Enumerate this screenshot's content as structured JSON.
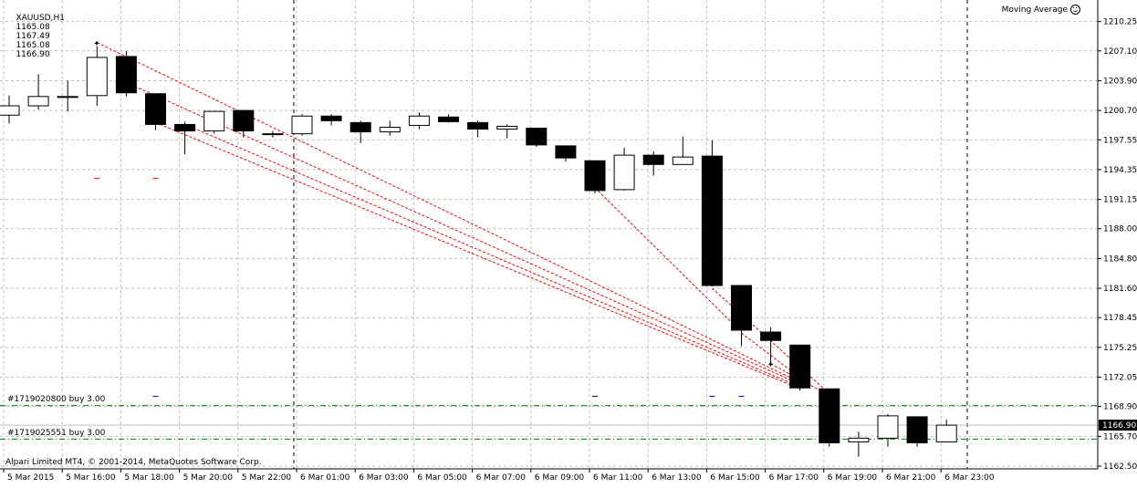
{
  "header": {
    "symbol": "XAUUSD,H1",
    "open": "1165.08",
    "high": "1167.49",
    "low": "1165.08",
    "close": "1166.90"
  },
  "indicator": {
    "label": "Moving Average",
    "icon": "smiley-icon"
  },
  "footer": {
    "copyright": "Alpari Limited MT4, © 2001-2014, MetaQuotes Software Corp."
  },
  "orders": [
    {
      "label": "#1719020800 buy 3.00",
      "price": 1169.0
    },
    {
      "label": "#1719025551 buy 3.00",
      "price": 1165.4
    }
  ],
  "current_price": {
    "label": "1166.90",
    "value": 1166.9
  },
  "colors": {
    "bull_fill": "#ffffff",
    "bear_fill": "#000000",
    "grid": "#c0c0c0",
    "order_line": "#008000",
    "trade_line": "#ff0000",
    "price_line": "#c0c0c0"
  },
  "chart_data": {
    "type": "candlestick",
    "title": "XAUUSD,H1",
    "ylim": [
      1162.5,
      1211.0
    ],
    "grid": true,
    "y_ticks": [
      "1210.25",
      "1207.10",
      "1203.90",
      "1200.70",
      "1197.55",
      "1194.35",
      "1191.15",
      "1188.00",
      "1184.80",
      "1181.60",
      "1178.45",
      "1175.25",
      "1172.05",
      "1168.90",
      "1165.70",
      "1162.50"
    ],
    "x_ticks": [
      "5 Mar 2015",
      "5 Mar 16:00",
      "5 Mar 18:00",
      "5 Mar 20:00",
      "5 Mar 22:00",
      "6 Mar 01:00",
      "6 Mar 03:00",
      "6 Mar 05:00",
      "6 Mar 07:00",
      "6 Mar 09:00",
      "6 Mar 11:00",
      "6 Mar 13:00",
      "6 Mar 15:00",
      "6 Mar 17:00",
      "6 Mar 19:00",
      "6 Mar 21:00",
      "6 Mar 23:00"
    ],
    "candles": [
      {
        "o": 1200.2,
        "h": 1202.3,
        "l": 1199.3,
        "c": 1201.2
      },
      {
        "o": 1201.2,
        "h": 1204.6,
        "l": 1200.8,
        "c": 1202.2
      },
      {
        "o": 1202.2,
        "h": 1203.9,
        "l": 1200.6,
        "c": 1202.2
      },
      {
        "o": 1202.3,
        "h": 1207.6,
        "l": 1201.2,
        "c": 1206.4
      },
      {
        "o": 1206.5,
        "h": 1207.1,
        "l": 1202.2,
        "c": 1202.6
      },
      {
        "o": 1202.5,
        "h": 1202.5,
        "l": 1198.6,
        "c": 1199.2
      },
      {
        "o": 1199.2,
        "h": 1199.5,
        "l": 1196.0,
        "c": 1198.5
      },
      {
        "o": 1198.5,
        "h": 1200.6,
        "l": 1198.2,
        "c": 1200.6
      },
      {
        "o": 1200.7,
        "h": 1200.7,
        "l": 1197.8,
        "c": 1198.5
      },
      {
        "o": 1198.2,
        "h": 1198.5,
        "l": 1197.8,
        "c": 1198.2
      },
      {
        "o": 1198.2,
        "h": 1200.3,
        "l": 1198.0,
        "c": 1200.1
      },
      {
        "o": 1200.1,
        "h": 1200.3,
        "l": 1199.1,
        "c": 1199.6
      },
      {
        "o": 1199.4,
        "h": 1199.6,
        "l": 1197.2,
        "c": 1198.4
      },
      {
        "o": 1198.4,
        "h": 1199.6,
        "l": 1198.0,
        "c": 1198.9
      },
      {
        "o": 1199.1,
        "h": 1200.5,
        "l": 1198.7,
        "c": 1200.1
      },
      {
        "o": 1200.0,
        "h": 1200.3,
        "l": 1199.4,
        "c": 1199.5
      },
      {
        "o": 1199.4,
        "h": 1199.6,
        "l": 1197.8,
        "c": 1198.7
      },
      {
        "o": 1198.7,
        "h": 1199.2,
        "l": 1197.7,
        "c": 1199.0
      },
      {
        "o": 1198.8,
        "h": 1198.8,
        "l": 1196.8,
        "c": 1197.0
      },
      {
        "o": 1196.9,
        "h": 1196.9,
        "l": 1195.2,
        "c": 1195.6
      },
      {
        "o": 1195.3,
        "h": 1195.3,
        "l": 1191.8,
        "c": 1192.1
      },
      {
        "o": 1192.2,
        "h": 1196.7,
        "l": 1192.1,
        "c": 1195.9
      },
      {
        "o": 1195.9,
        "h": 1196.3,
        "l": 1193.7,
        "c": 1194.9
      },
      {
        "o": 1194.9,
        "h": 1197.9,
        "l": 1194.9,
        "c": 1195.7
      },
      {
        "o": 1195.8,
        "h": 1197.5,
        "l": 1181.8,
        "c": 1181.9
      },
      {
        "o": 1181.9,
        "h": 1181.9,
        "l": 1175.4,
        "c": 1177.1
      },
      {
        "o": 1176.9,
        "h": 1177.4,
        "l": 1173.4,
        "c": 1176.0
      },
      {
        "o": 1175.5,
        "h": 1175.5,
        "l": 1170.6,
        "c": 1170.9
      },
      {
        "o": 1170.8,
        "h": 1170.8,
        "l": 1164.6,
        "c": 1165.0
      },
      {
        "o": 1165.1,
        "h": 1166.2,
        "l": 1163.5,
        "c": 1165.5
      },
      {
        "o": 1165.5,
        "h": 1168.1,
        "l": 1164.6,
        "c": 1167.9
      },
      {
        "o": 1167.8,
        "h": 1167.8,
        "l": 1164.6,
        "c": 1165.0
      },
      {
        "o": 1165.1,
        "h": 1167.5,
        "l": 1165.1,
        "c": 1166.9
      }
    ],
    "trade_lines": [
      {
        "from": [
          3,
          1208.0
        ],
        "to": [
          27,
          1171.5
        ]
      },
      {
        "from": [
          4,
          1203.7
        ],
        "to": [
          27,
          1171.3
        ]
      },
      {
        "from": [
          5,
          1199.4
        ],
        "to": [
          27,
          1170.8
        ]
      },
      {
        "from": [
          6,
          1199.2
        ],
        "to": [
          27,
          1171.0
        ]
      },
      {
        "from": [
          20,
          1192.4
        ],
        "to": [
          25,
          1176.9
        ]
      },
      {
        "from": [
          24,
          1181.6
        ],
        "to": [
          28,
          1170.3
        ]
      },
      {
        "from": [
          25,
          1176.8
        ],
        "to": [
          27,
          1172.0
        ]
      },
      {
        "from": [
          26,
          1173.5
        ],
        "to": [
          28,
          1170.1
        ]
      }
    ],
    "markers": [
      {
        "type": "star",
        "x": 3,
        "y": 1208.0
      },
      {
        "type": "star",
        "x": 26,
        "y": 1173.5
      },
      {
        "type": "dash",
        "x": 3,
        "y": 1193.4,
        "color": "#ff0000"
      },
      {
        "type": "dash",
        "x": 5,
        "y": 1193.4,
        "color": "#ff0000"
      },
      {
        "type": "dash",
        "x": 5,
        "y": 1170.0,
        "color": "#0000ff"
      },
      {
        "type": "dash",
        "x": 20,
        "y": 1170.0,
        "color": "#0000ff"
      },
      {
        "type": "dash",
        "x": 24,
        "y": 1170.0,
        "color": "#0000ff"
      },
      {
        "type": "dash",
        "x": 25,
        "y": 1170.0,
        "color": "#0000ff"
      }
    ],
    "vertical_separators": [
      10,
      33
    ]
  }
}
